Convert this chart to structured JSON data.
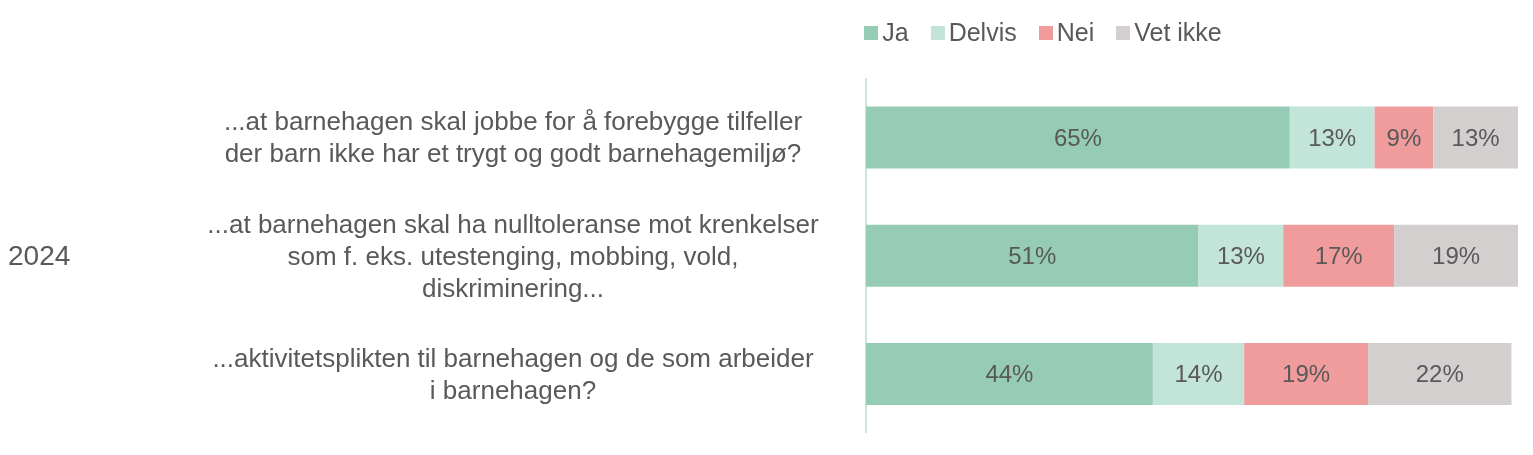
{
  "chart_data": {
    "type": "bar",
    "orientation": "horizontal",
    "stacked": true,
    "ylabel": "2024",
    "categories": [
      "...at barnehagen skal jobbe for å forebygge tilfeller der barn ikke har et trygt og godt barnehagemiljø?",
      "...at barnehagen skal ha nulltoleranse mot krenkelser som f. eks. utestenging, mobbing, vold, diskriminering...",
      "...aktivitetsplikten til barnehagen og de som arbeider i barnehagen?"
    ],
    "series": [
      {
        "name": "Ja",
        "color": "#96cbb5",
        "values": [
          65,
          51,
          44
        ],
        "value_labels": [
          "65%",
          "51%",
          "44%"
        ]
      },
      {
        "name": "Delvis",
        "color": "#c3e4d9",
        "values": [
          13,
          13,
          14
        ],
        "value_labels": [
          "13%",
          "13%",
          "14%"
        ]
      },
      {
        "name": "Nei",
        "color": "#f09c9c",
        "values": [
          9,
          17,
          19
        ],
        "value_labels": [
          "9%",
          "17%",
          "19%"
        ]
      },
      {
        "name": "Vet ikke",
        "color": "#d3cfcf",
        "values": [
          13,
          19,
          22
        ],
        "value_labels": [
          "13%",
          "19%",
          "22%"
        ]
      }
    ],
    "legend": "top"
  }
}
